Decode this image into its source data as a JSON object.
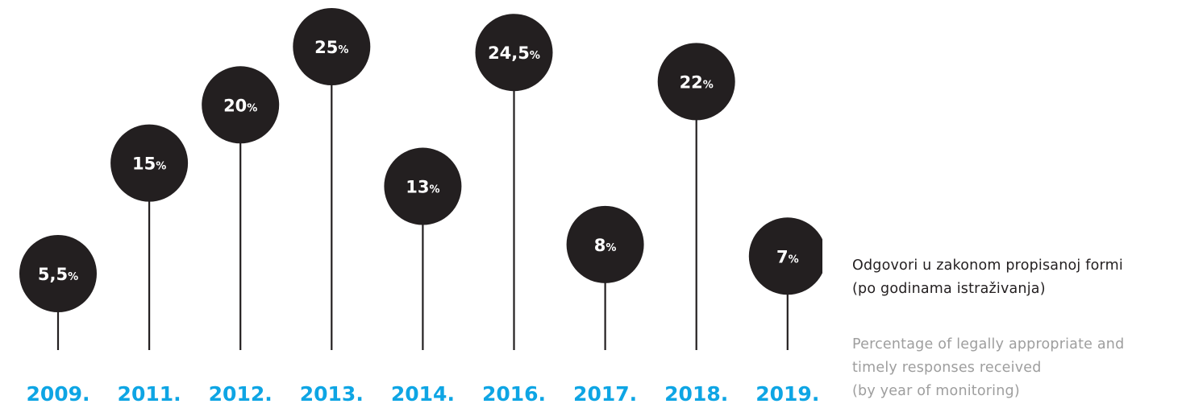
{
  "chart_data": {
    "type": "lollipop",
    "categories": [
      "2009.",
      "2011.",
      "2012.",
      "2013.",
      "2014.",
      "2016.",
      "2017.",
      "2018.",
      "2019."
    ],
    "values": [
      5.5,
      15,
      20,
      25,
      13,
      24.5,
      8,
      22,
      7
    ],
    "value_labels": [
      "5,5",
      "15",
      "20",
      "25",
      "13",
      "24,5",
      "8",
      "22",
      "7"
    ],
    "unit": "%",
    "ylim": [
      0,
      25
    ],
    "grid": false,
    "colors": {
      "marker": "#231f20",
      "stem": "#231f20",
      "year": "#0ea5e4",
      "value_text": "#ffffff"
    }
  },
  "caption": {
    "local_lines": [
      "Odgovori u zakonom propisanoj formi",
      "(po godinama istraživanja)"
    ],
    "english_lines": [
      "Percentage of legally appropriate and",
      "timely responses received",
      "(by year of monitoring)"
    ]
  }
}
